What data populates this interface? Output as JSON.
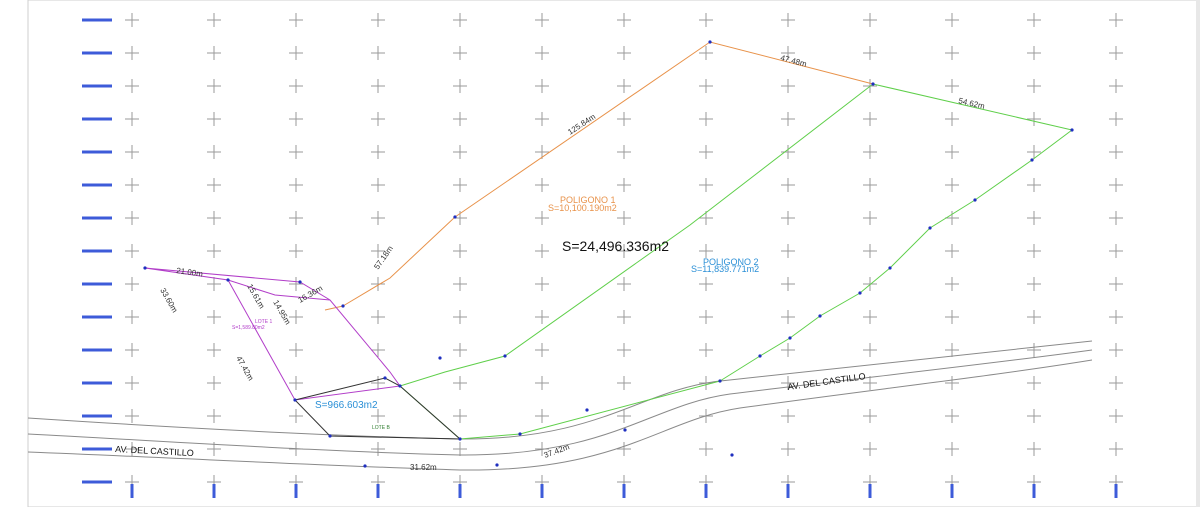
{
  "plan": {
    "total_area": "S=24,496.336m2",
    "polygon1": {
      "name": "POLIGONO 1",
      "area": "S=10,100.190m2"
    },
    "polygon2": {
      "name": "POLIGONO 2",
      "area": "S=11,839.771m2"
    },
    "lot_b_area": "S=966.603m2",
    "lot_b_name": "LOTE B",
    "lot_a_name": "LOTE 1",
    "lot_a_area": "S=1,589.80m2",
    "street_left": "AV. DEL CASTILLO",
    "street_right": "AV. DEL CASTILLO"
  },
  "dimensions": {
    "top_long": "125.84m",
    "top_short": "47.48m",
    "right_top": "54.62m",
    "left_mid": "57.18m",
    "left_short": "16.36m",
    "lot_a_top": "21.00m",
    "lot_a_side1": "15.61m",
    "lot_a_diag": "14.95m",
    "lot_a_left": "33.60m",
    "lot_a_right": "47.42m",
    "bottom_road": "31.62m",
    "bottom_road2": "37.42m"
  },
  "colors": {
    "polygon1": "#e8924a",
    "polygon2": "#5fcf4a",
    "lot_a": "#b23ec9",
    "lot_b": "#333333",
    "blue_text": "#2a8fd6",
    "grid": "#999999"
  }
}
